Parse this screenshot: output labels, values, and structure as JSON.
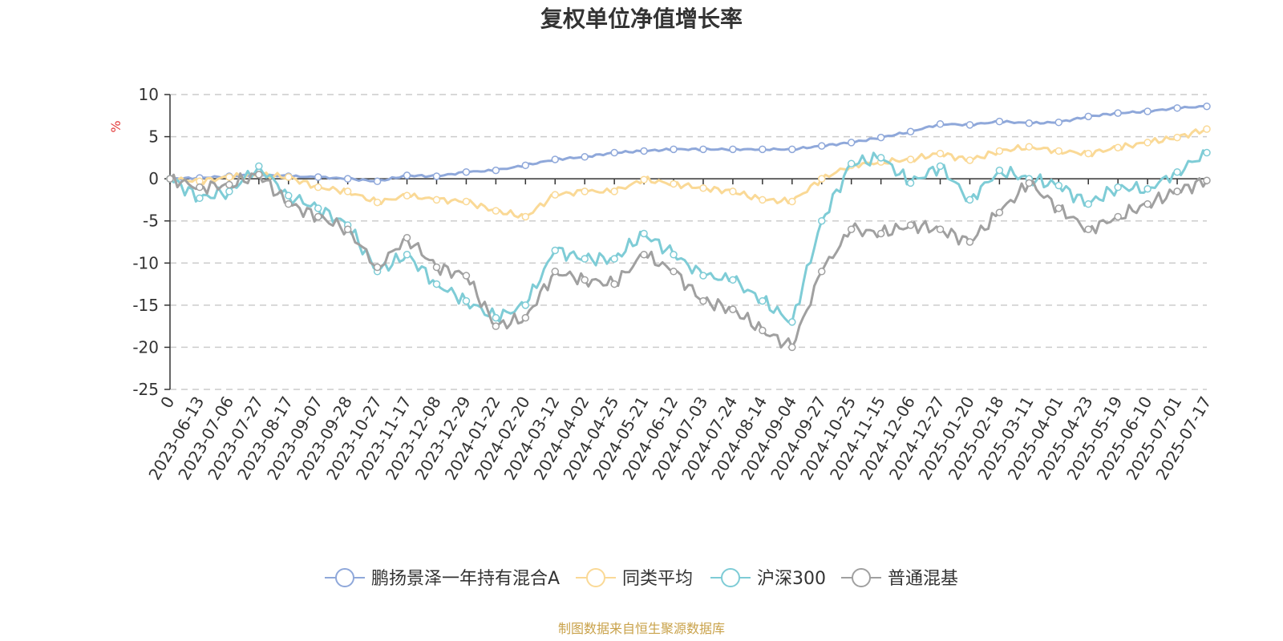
{
  "chart_data": {
    "type": "line",
    "title": "复权单位净值增长率",
    "ylabel": "%",
    "ylim": [
      -25,
      10
    ],
    "yticks": [
      10,
      5,
      0,
      -5,
      -10,
      -15,
      -20,
      -25
    ],
    "grid": true,
    "legend_position": "bottom",
    "x_labels": [
      "0",
      "2023-06-13",
      "2023-07-06",
      "2023-07-27",
      "2023-08-17",
      "2023-09-07",
      "2023-09-28",
      "2023-10-27",
      "2023-11-17",
      "2023-12-08",
      "2023-12-29",
      "2024-01-22",
      "2024-02-20",
      "2024-03-12",
      "2024-04-02",
      "2024-04-25",
      "2024-05-21",
      "2024-06-12",
      "2024-07-03",
      "2024-07-24",
      "2024-08-14",
      "2024-09-04",
      "2024-09-27",
      "2024-10-25",
      "2024-11-15",
      "2024-12-06",
      "2024-12-27",
      "2025-01-20",
      "2025-02-18",
      "2025-03-11",
      "2025-04-01",
      "2025-04-23",
      "2025-05-19",
      "2025-06-10",
      "2025-07-01",
      "2025-07-17"
    ],
    "series": [
      {
        "name": "鹏扬景泽一年持有混合A",
        "color": "#8FA8DA",
        "values": [
          0.0,
          0.1,
          0.3,
          0.5,
          0.3,
          0.2,
          0.0,
          -0.3,
          0.4,
          0.3,
          0.8,
          1.0,
          1.6,
          2.3,
          2.6,
          3.1,
          3.3,
          3.5,
          3.5,
          3.5,
          3.5,
          3.5,
          3.9,
          4.3,
          4.9,
          5.6,
          6.5,
          6.4,
          6.8,
          6.6,
          6.7,
          7.4,
          7.8,
          8.0,
          8.4,
          8.6
        ]
      },
      {
        "name": "同类平均",
        "color": "#FAD996",
        "values": [
          0.0,
          -0.3,
          0.2,
          0.5,
          0.2,
          -1.0,
          -1.5,
          -2.8,
          -2.0,
          -2.5,
          -2.7,
          -3.8,
          -4.5,
          -1.9,
          -1.5,
          -1.5,
          -0.1,
          -0.6,
          -1.1,
          -1.5,
          -2.5,
          -2.7,
          0.0,
          1.6,
          2.0,
          2.3,
          3.0,
          2.2,
          3.3,
          3.8,
          3.3,
          3.0,
          3.7,
          4.3,
          4.9,
          5.9
        ]
      },
      {
        "name": "沪深300",
        "color": "#7ECCD6",
        "values": [
          0.0,
          -2.3,
          -1.5,
          1.5,
          -2.0,
          -3.5,
          -5.5,
          -11.0,
          -9.0,
          -12.5,
          -14.5,
          -16.5,
          -15.0,
          -8.5,
          -9.5,
          -9.5,
          -6.5,
          -9.0,
          -11.5,
          -12.0,
          -14.5,
          -17.0,
          -5.0,
          1.8,
          2.5,
          -0.5,
          1.5,
          -2.5,
          1.0,
          0.0,
          -0.8,
          -3.0,
          -1.0,
          -1.2,
          0.8,
          3.1
        ]
      },
      {
        "name": "普通混基",
        "color": "#A0A0A0",
        "values": [
          0.0,
          -1.0,
          -0.7,
          0.5,
          -3.0,
          -4.5,
          -6.0,
          -10.5,
          -7.0,
          -10.5,
          -11.5,
          -17.5,
          -16.5,
          -11.0,
          -12.0,
          -12.5,
          -9.0,
          -11.0,
          -14.5,
          -15.5,
          -18.0,
          -20.0,
          -11.0,
          -6.0,
          -6.5,
          -5.5,
          -6.0,
          -7.5,
          -4.0,
          -0.5,
          -3.5,
          -6.0,
          -4.5,
          -3.0,
          -1.5,
          -0.2
        ]
      }
    ]
  },
  "source": "制图数据来自恒生聚源数据库",
  "source_color": "#C9A24A",
  "unit_color": "#E33A3A"
}
